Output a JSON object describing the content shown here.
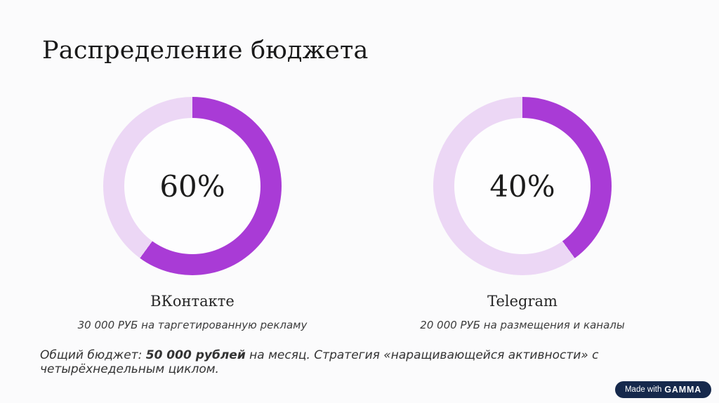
{
  "slide": {
    "title": "Распределение бюджета",
    "footer": {
      "prefix": "Общий бюджет: ",
      "bold_text": "50 000 рублей",
      "suffix": " на месяц. Стратегия «наращивающейся активности» с четырёхнедельным циклом."
    },
    "badge": {
      "prefix": "Made with",
      "brand": "GAMMA",
      "background_color": "#16294c"
    }
  },
  "chart_data": [
    {
      "type": "pie",
      "subtype": "donut",
      "title": "ВКонтакте",
      "center_label": "60%",
      "subtitle": "30 000 РУБ на таргетированную рекламу",
      "start_angle_deg": 0,
      "direction": "clockwise",
      "slices": [
        {
          "value": 60,
          "color": "#a93bd6"
        },
        {
          "value": 40,
          "color": "#ecd7f5"
        }
      ]
    },
    {
      "type": "pie",
      "subtype": "donut",
      "title": "Telegram",
      "center_label": "40%",
      "subtitle": "20 000 РУБ на размещения и каналы",
      "start_angle_deg": 0,
      "direction": "clockwise",
      "slices": [
        {
          "value": 40,
          "color": "#a93bd6"
        },
        {
          "value": 60,
          "color": "#ecd7f5"
        }
      ]
    }
  ]
}
